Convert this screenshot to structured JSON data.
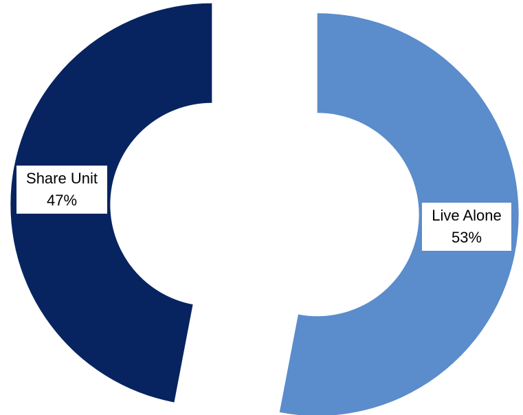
{
  "chart_data": {
    "type": "pie",
    "variant": "exploded donut",
    "categories": [
      "Live Alone",
      "Share Unit"
    ],
    "values": [
      53,
      47
    ],
    "unit": "%",
    "colors": [
      "#5b8ccc",
      "#072461"
    ],
    "labels": [
      {
        "name": "Live Alone",
        "value": "53%"
      },
      {
        "name": "Share Unit",
        "value": "47%"
      }
    ],
    "title": "",
    "legend": "none",
    "background": "#ffffff"
  }
}
